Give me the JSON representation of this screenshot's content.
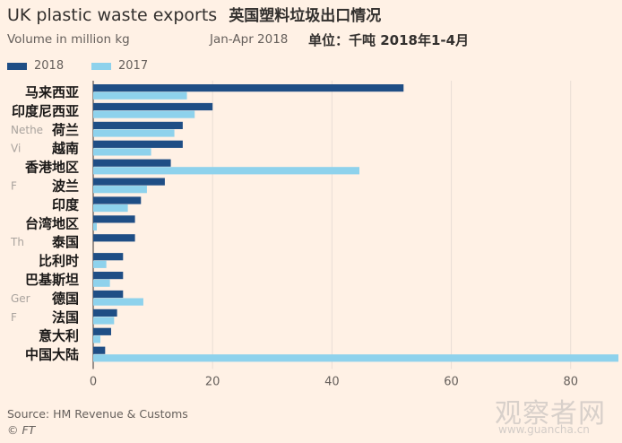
{
  "header": {
    "title_en": "UK plastic waste exports",
    "title_cn": "英国塑料垃圾出口情况",
    "subtitle_en": "Volume in million kg",
    "date_range": "Jan-Apr 2018",
    "subtitle_cn": "单位：千吨 2018年1-4月"
  },
  "legend": [
    {
      "name": "2018",
      "color": "#1f4e85"
    },
    {
      "name": "2017",
      "color": "#8ed2ec"
    }
  ],
  "footer": {
    "source": "Source: HM Revenue & Customs",
    "credit": "© FT"
  },
  "watermark": {
    "text": "观察者网",
    "url": "www.guancha.cn"
  },
  "colors": {
    "background": "#fff1e5",
    "series_2018": "#1f4e85",
    "series_2017": "#8ed2ec",
    "grid": "#e9ded5"
  },
  "chart_data": {
    "type": "bar",
    "orientation": "horizontal",
    "categories": [
      {
        "label": "马来西亚",
        "hidden_label": ""
      },
      {
        "label": "印度尼西亚",
        "hidden_label": ""
      },
      {
        "label": "荷兰",
        "hidden_label": "Nethe"
      },
      {
        "label": "越南",
        "hidden_label": "Vi"
      },
      {
        "label": "香港地区",
        "hidden_label": ""
      },
      {
        "label": "波兰",
        "hidden_label": "F"
      },
      {
        "label": "印度",
        "hidden_label": ""
      },
      {
        "label": "台湾地区",
        "hidden_label": ""
      },
      {
        "label": "泰国",
        "hidden_label": "Th"
      },
      {
        "label": "比利时",
        "hidden_label": ""
      },
      {
        "label": "巴基斯坦",
        "hidden_label": ""
      },
      {
        "label": "德国",
        "hidden_label": "Ger"
      },
      {
        "label": "法国",
        "hidden_label": "F"
      },
      {
        "label": "意大利",
        "hidden_label": ""
      },
      {
        "label": "中国大陆",
        "hidden_label": ""
      }
    ],
    "series": [
      {
        "name": "2018",
        "values": [
          52,
          20,
          15,
          15,
          13,
          12,
          8,
          7,
          7,
          5,
          5,
          5,
          4,
          3,
          2
        ]
      },
      {
        "name": "2017",
        "values": [
          15.7,
          17,
          13.6,
          9.7,
          44.6,
          9,
          5.8,
          0.6,
          0,
          2.2,
          2.8,
          8.4,
          3.5,
          1.2,
          88
        ]
      }
    ],
    "xlim": [
      0,
      88
    ],
    "xticks": [
      0,
      20,
      40,
      60,
      80
    ],
    "xlabel": "",
    "ylabel": "",
    "grid": "vertical"
  }
}
